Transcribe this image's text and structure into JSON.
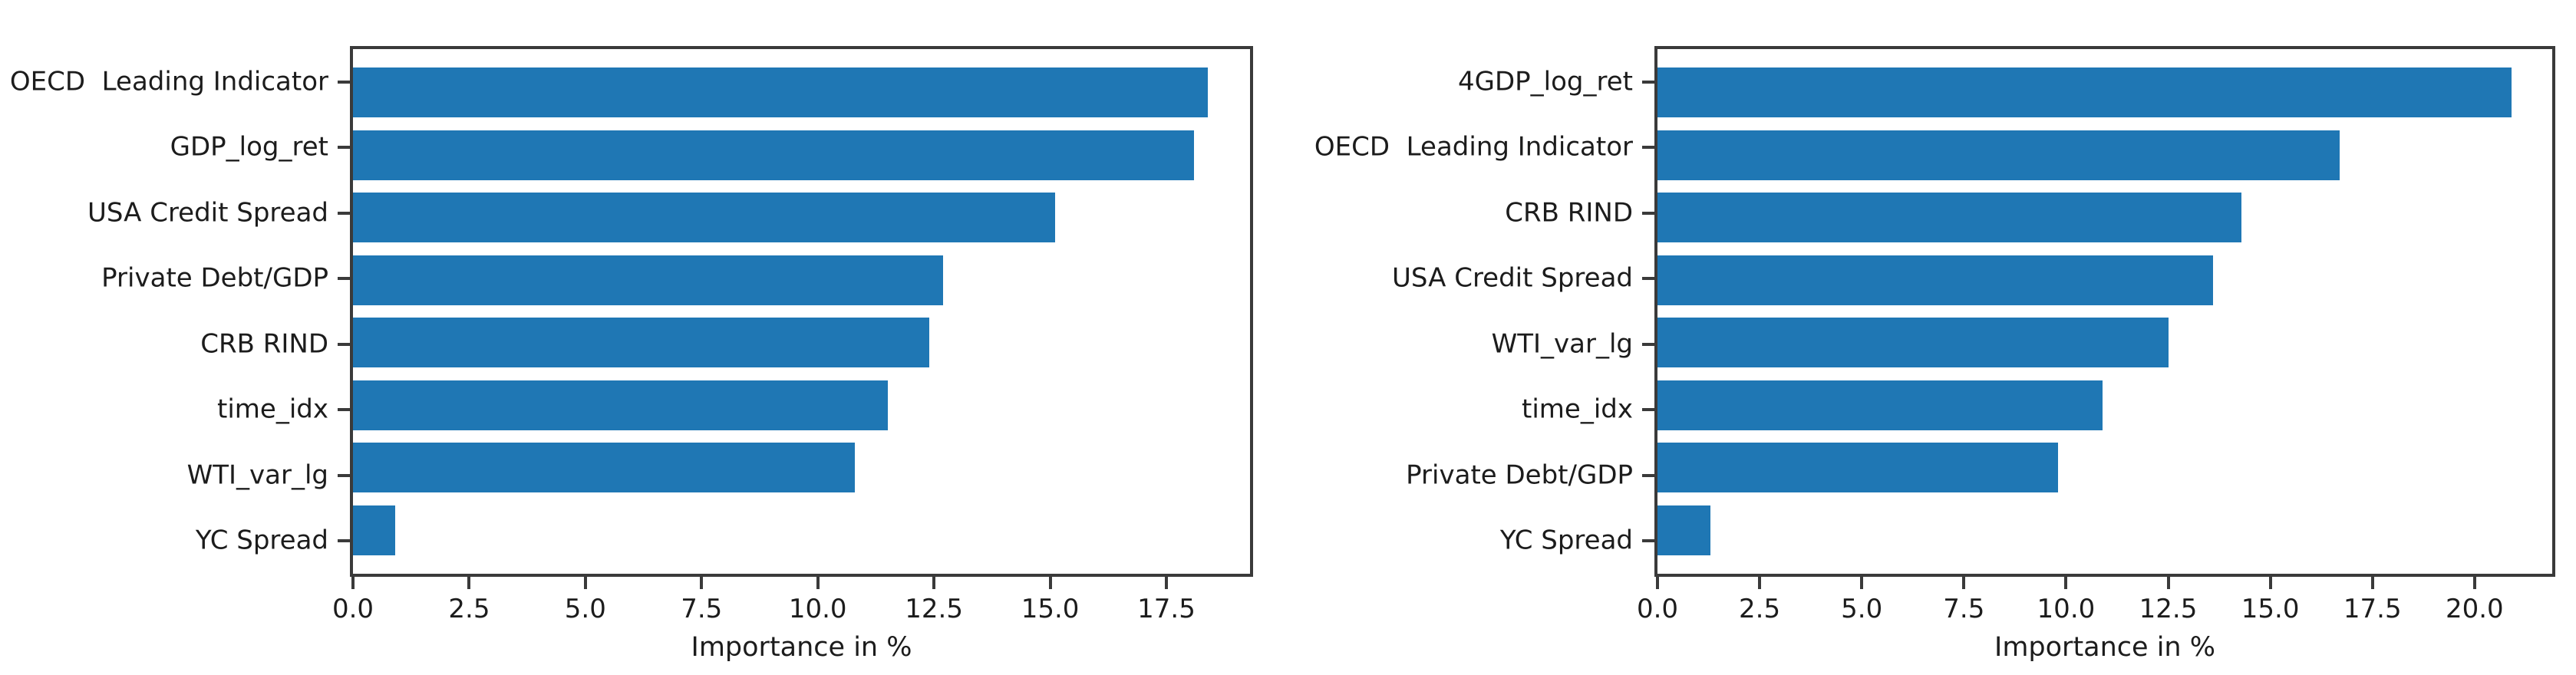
{
  "figure": {
    "background": "#ffffff",
    "bar_color": "#1f77b4",
    "axis_color": "#3a3a3a",
    "text_color": "#1c1c1c"
  },
  "chart_data": [
    {
      "type": "bar",
      "orientation": "horizontal",
      "title": "",
      "xlabel": "Importance in %",
      "ylabel": "",
      "categories": [
        "OECD  Leading Indicator",
        "GDP_log_ret",
        "USA Credit Spread",
        "Private Debt/GDP",
        "CRB RIND",
        "time_idx",
        "WTI_var_lg",
        "YC Spread"
      ],
      "values": [
        18.4,
        18.1,
        15.1,
        12.7,
        12.4,
        11.5,
        10.8,
        0.9
      ],
      "xlim": [
        0,
        19.3
      ],
      "xticks": [
        0.0,
        2.5,
        5.0,
        7.5,
        10.0,
        12.5,
        15.0,
        17.5
      ],
      "grid": false,
      "legend": null
    },
    {
      "type": "bar",
      "orientation": "horizontal",
      "title": "",
      "xlabel": "Importance in %",
      "ylabel": "",
      "categories": [
        "4GDP_log_ret",
        "OECD  Leading Indicator",
        "CRB RIND",
        "USA Credit Spread",
        "WTI_var_lg",
        "time_idx",
        "Private Debt/GDP",
        "YC Spread"
      ],
      "values": [
        20.9,
        16.7,
        14.3,
        13.6,
        12.5,
        10.9,
        9.8,
        1.3
      ],
      "xlim": [
        0,
        21.9
      ],
      "xticks": [
        0.0,
        2.5,
        5.0,
        7.5,
        10.0,
        12.5,
        15.0,
        17.5,
        20.0
      ],
      "grid": false,
      "legend": null
    }
  ]
}
